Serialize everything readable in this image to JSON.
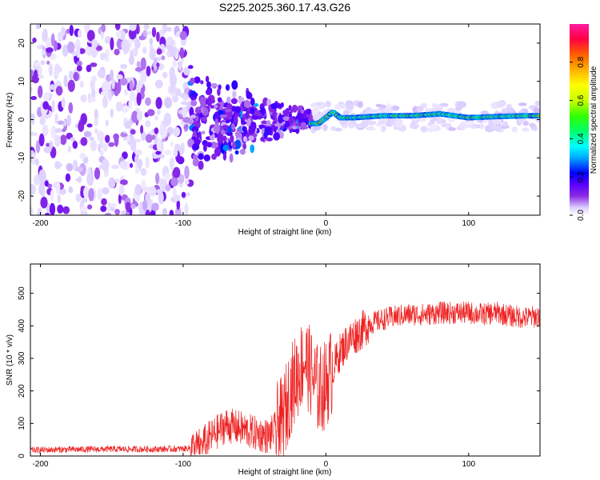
{
  "title": "S225.2025.360.17.43.G26",
  "chart_data": [
    {
      "type": "heatmap",
      "xlabel": "Height of straight line (km)",
      "ylabel": "Frequency (Hz)",
      "xlim": [
        -207,
        150
      ],
      "ylim": [
        -25,
        25
      ],
      "xticks": [
        -200,
        -100,
        0,
        100
      ],
      "yticks": [
        -20,
        -10,
        0,
        10,
        20
      ],
      "colorbar": {
        "label": "Normalized spectral amplitude",
        "range": [
          0.0,
          1.0
        ],
        "ticks": [
          0.0,
          0.2,
          0.4,
          0.6,
          0.8
        ],
        "colors": [
          "#ffffff",
          "#dccfff",
          "#8a2be2",
          "#5a00ff",
          "#0000ff",
          "#00a8ff",
          "#00ffff",
          "#00ff6a",
          "#33ff00",
          "#c8ff00",
          "#ffff00",
          "#ffb000",
          "#ff6000",
          "#ff0040",
          "#ff1aa0"
        ]
      },
      "regions": [
        {
          "x_range": [
            -207,
            -95
          ],
          "freq_spread": 25,
          "amplitude": 0.12,
          "pattern": "broadband noise"
        },
        {
          "x_range": [
            -95,
            -10
          ],
          "freq_spread_start": 15,
          "freq_spread_end": 2,
          "amplitude": 0.25,
          "pattern": "converging"
        },
        {
          "x_range": [
            -10,
            150
          ],
          "freq_center": 0.8,
          "freq_spread": 2,
          "amplitude": 0.85,
          "pattern": "narrow tone"
        }
      ],
      "tone_line": {
        "x": [
          -10,
          -5,
          0,
          5,
          10,
          20,
          40,
          60,
          80,
          100,
          120,
          140,
          150
        ],
        "freq": [
          -1,
          -1,
          0.5,
          2,
          0.5,
          0.5,
          1,
          1,
          1.5,
          0.5,
          0.8,
          1,
          1
        ]
      }
    },
    {
      "type": "line",
      "series": [
        {
          "name": "SNR",
          "color": "#ee2222",
          "x": [
            -207,
            -180,
            -150,
            -120,
            -100,
            -90,
            -80,
            -70,
            -60,
            -50,
            -40,
            -30,
            -25,
            -20,
            -15,
            -10,
            -5,
            0,
            5,
            10,
            15,
            20,
            25,
            30,
            40,
            50,
            60,
            70,
            80,
            90,
            100,
            110,
            120,
            130,
            140,
            150
          ],
          "y": [
            18,
            20,
            21,
            21,
            22,
            28,
            60,
            95,
            85,
            70,
            60,
            110,
            200,
            250,
            300,
            250,
            200,
            220,
            270,
            320,
            350,
            370,
            385,
            405,
            420,
            430,
            435,
            435,
            440,
            440,
            440,
            435,
            440,
            430,
            425,
            430
          ]
        }
      ],
      "xlabel": "Height of straight line (km)",
      "ylabel": "SNR (10 * v/v)",
      "xlim": [
        -207,
        150
      ],
      "ylim": [
        0,
        590
      ],
      "xticks": [
        -200,
        -100,
        0,
        100
      ],
      "yticks": [
        0,
        100,
        200,
        300,
        400,
        500
      ]
    }
  ]
}
